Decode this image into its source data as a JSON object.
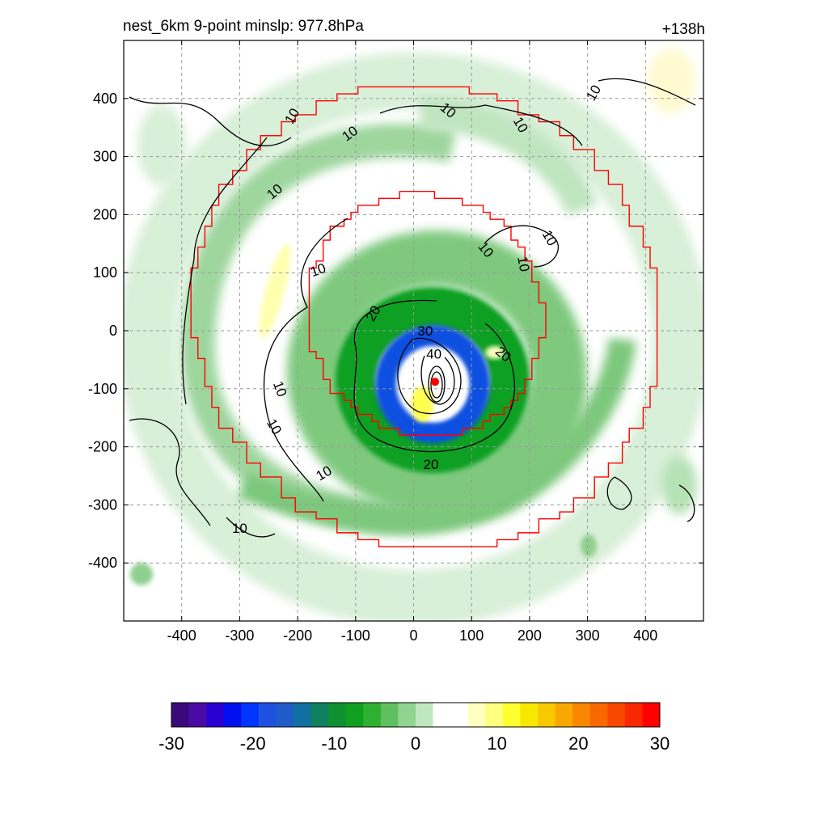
{
  "header": {
    "left_title": "nest_6km  9-point minslp: 977.8hPa",
    "right_title": "+138h"
  },
  "chart_data": {
    "type": "heatmap",
    "title": "nest_6km  9-point minslp: 977.8hPa",
    "forecast_hour_label": "+138h",
    "xlabel": "",
    "ylabel": "",
    "xlim": [
      -500,
      500
    ],
    "ylim": [
      -500,
      500
    ],
    "x_ticks": [
      -400,
      -300,
      -200,
      -100,
      0,
      100,
      200,
      300,
      400
    ],
    "y_ticks": [
      400,
      300,
      200,
      100,
      0,
      -100,
      -200,
      -300,
      -400
    ],
    "x_tick_labels": [
      "-400",
      "-300",
      "-200",
      "-100",
      "0",
      "100",
      "200",
      "300",
      "400"
    ],
    "y_tick_labels": [
      "400",
      "300",
      "200",
      "100",
      "0",
      "-100",
      "-200",
      "-300",
      "-400"
    ],
    "grid": true,
    "storm_center": {
      "x": 37,
      "y": -88
    },
    "shading_field": {
      "description_colorbar_range": [
        -30,
        30
      ],
      "colorbar_ticks": [
        -30,
        -20,
        -10,
        0,
        10,
        20,
        30
      ],
      "colorbar_tick_labels": [
        "-30",
        "-20",
        "-10",
        "0",
        "10",
        "20",
        "30"
      ],
      "colorbar_colors": [
        "#3b0a7a",
        "#4a0aa5",
        "#2a00d0",
        "#0010f0",
        "#0035ff",
        "#2050e0",
        "#205cc8",
        "#1070a0",
        "#108060",
        "#109030",
        "#10a020",
        "#30b030",
        "#60c060",
        "#90d490",
        "#c0e8c0",
        "#ffffff",
        "#ffffff",
        "#ffffc0",
        "#ffff80",
        "#ffff30",
        "#f8e800",
        "#f8c800",
        "#f8a800",
        "#f88800",
        "#f86800",
        "#f84800",
        "#f82800",
        "#ff0000"
      ]
    },
    "contour_labels": [
      "10",
      "10",
      "10",
      "10",
      "10",
      "10",
      "10",
      "10",
      "10",
      "10",
      "10",
      "10",
      "10",
      "10",
      "20",
      "20",
      "20",
      "30",
      "40"
    ],
    "contour_levels": [
      10,
      20,
      30,
      40
    ],
    "inner_nest_box": {
      "x_range": [
        -185,
        225
      ],
      "y_range": [
        -180,
        235
      ]
    },
    "outer_nest_box": {
      "x_range": [
        -380,
        425
      ],
      "y_range": [
        -375,
        425
      ]
    }
  }
}
